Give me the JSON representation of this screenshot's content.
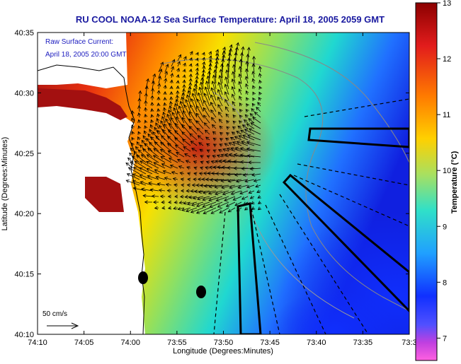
{
  "title": "RU COOL  NOAA-12  Sea Surface Temperature:  April 18, 2005 2059 GMT",
  "legend": {
    "line1": "Raw Surface Current:",
    "line2": "April 18, 2005 20:00 GMT"
  },
  "scale_label": "50 cm/s",
  "x_axis": {
    "label": "Longitude (Degrees:Minutes)",
    "ticks": [
      "74:10",
      "74:05",
      "74:00",
      "73:55",
      "73:50",
      "73:45",
      "73:40",
      "73:35",
      "73:3"
    ]
  },
  "y_axis": {
    "label": "Latitude (Degrees:Minutes)",
    "ticks": [
      "40:35",
      "40:30",
      "40:25",
      "40:20",
      "40:15",
      "40:10"
    ]
  },
  "colorbar": {
    "label": "Temperature (°C)",
    "ticks": [
      "13",
      "12",
      "11",
      "10",
      "9",
      "8",
      "7"
    ],
    "range": [
      6.6,
      13.0
    ]
  },
  "colors": {
    "title": "#1a1aa0",
    "legend_text": "#2020c0",
    "land": "#ffffff",
    "sst_warm": "#8b0000",
    "sst_cold": "#1030ff"
  }
}
